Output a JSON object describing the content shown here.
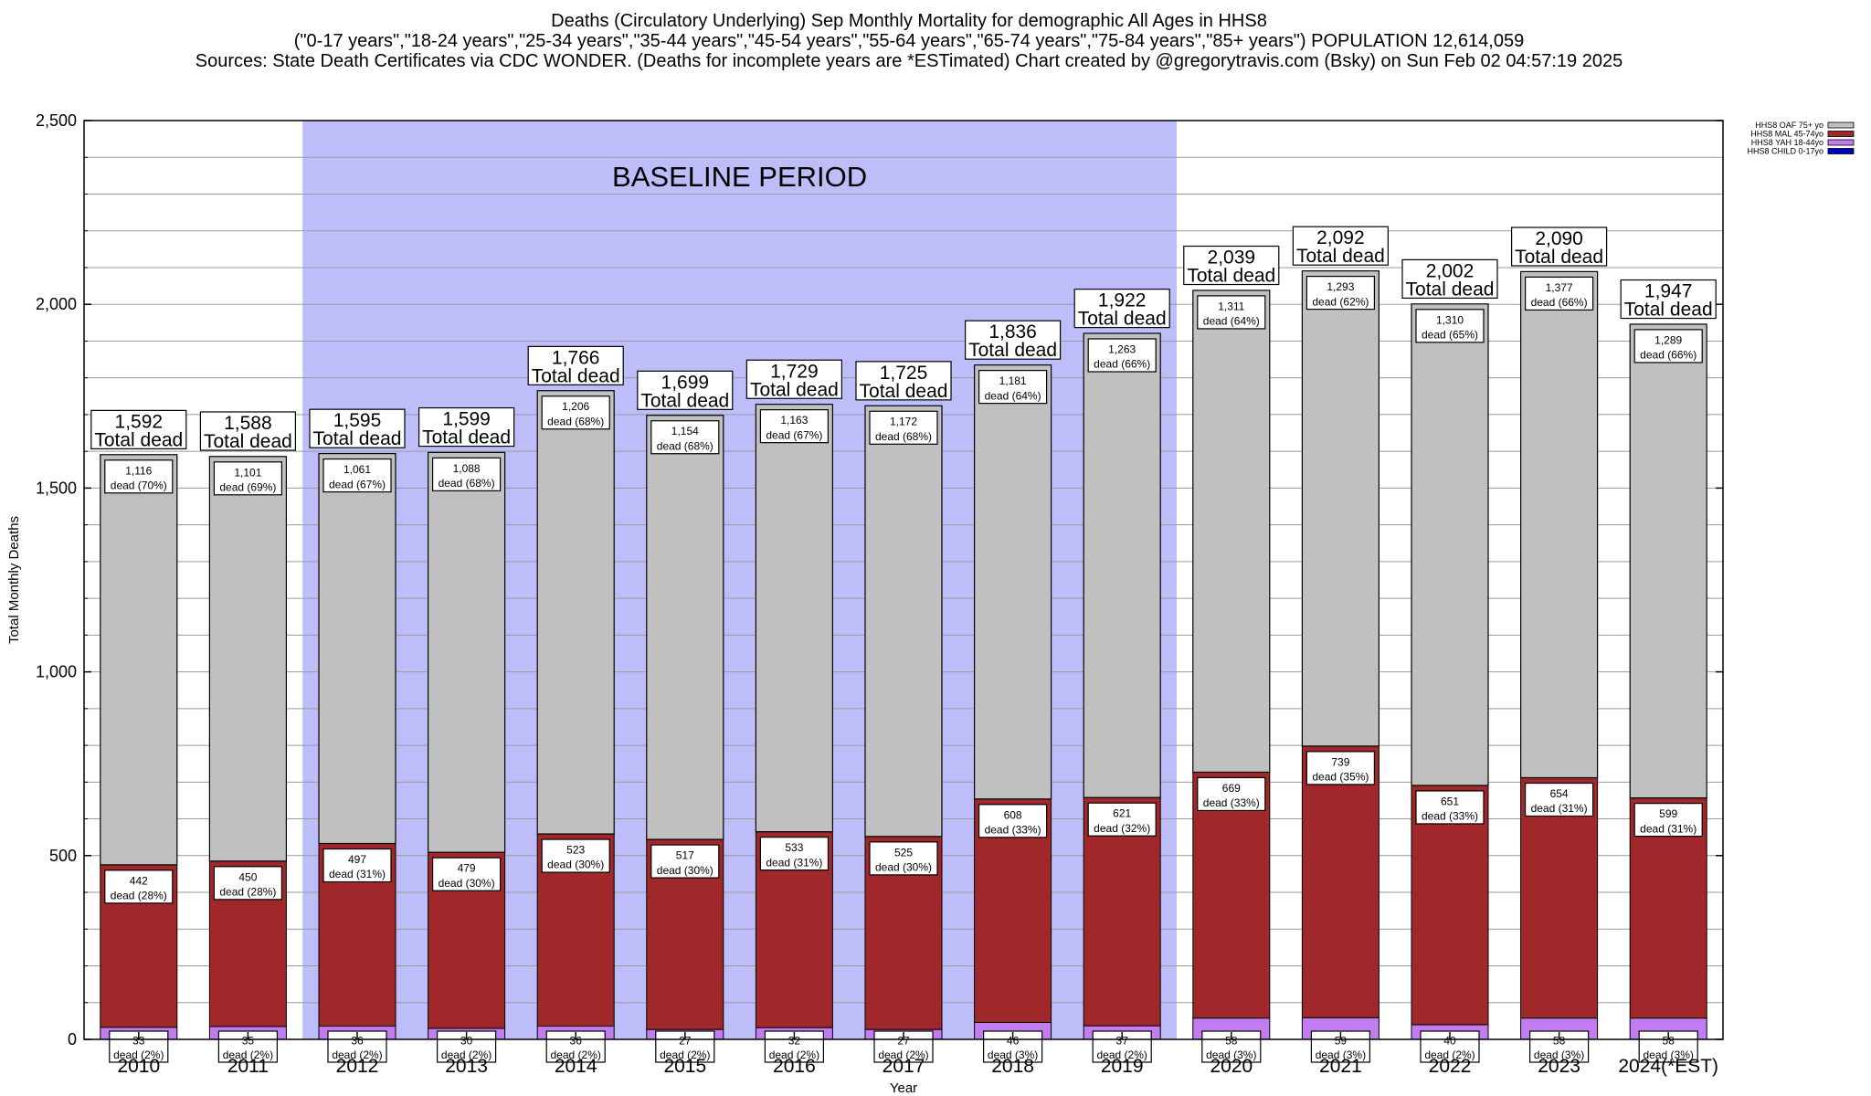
{
  "header": {
    "title_line1": "Deaths (Circulatory Underlying) Sep Monthly Mortality for demographic All Ages in HHS8",
    "title_line2": "(\"0-17 years\",\"18-24 years\",\"25-34 years\",\"35-44 years\",\"45-54 years\",\"55-64 years\",\"65-74 years\",\"75-84 years\",\"85+ years\") POPULATION 12,614,059",
    "title_line3": "Sources: State Death Certificates via CDC WONDER. (Deaths for incomplete years are *ESTimated)                Chart created by @gregorytravis.com (Bsky) on Sun Feb 02 04:57:19 2025"
  },
  "colors": {
    "oaf": "#c0c0c0",
    "mal": "#a0282a",
    "yah": "#c27cf0",
    "child": "#0000c8",
    "baseline": "#bdbdfa"
  },
  "chart_data": {
    "type": "bar",
    "stacked": true,
    "xlabel": "Year",
    "ylabel": "Total Monthly Deaths",
    "ylim": [
      0,
      2500
    ],
    "yticks": [
      0,
      500,
      1000,
      1500,
      2000,
      2500
    ],
    "ytick_labels": [
      "0",
      "500",
      "1,000",
      "1,500",
      "2,000",
      "2,500"
    ],
    "grid": true,
    "legend_position": "top-right",
    "baseline": {
      "label": "BASELINE PERIOD",
      "start": "2012",
      "end": "2019"
    },
    "total_suffix": "Total dead",
    "dead_word": "dead",
    "categories": [
      "2010",
      "2011",
      "2012",
      "2013",
      "2014",
      "2015",
      "2016",
      "2017",
      "2018",
      "2019",
      "2020",
      "2021",
      "2022",
      "2023",
      "2024(*EST)"
    ],
    "series": [
      {
        "name": "HHS8 CHILD 0-17yo",
        "key": "child",
        "values": [
          0,
          0,
          0,
          0,
          0,
          0,
          0,
          0,
          0,
          0,
          0,
          0,
          0,
          0,
          0
        ]
      },
      {
        "name": "HHS8 YAH 18-44yo",
        "key": "yah",
        "values": [
          33,
          35,
          36,
          30,
          36,
          27,
          32,
          27,
          46,
          37,
          58,
          59,
          40,
          58,
          58
        ],
        "labels": [
          "33",
          "35",
          "36",
          "30",
          "36",
          "27",
          "32",
          "27",
          "46",
          "37",
          "58",
          "59",
          "40",
          "58",
          "58"
        ],
        "pcts": [
          "(2%)",
          "(2%)",
          "(2%)",
          "(2%)",
          "(2%)",
          "(2%)",
          "(2%)",
          "(2%)",
          "(3%)",
          "(2%)",
          "(3%)",
          "(3%)",
          "(2%)",
          "(3%)",
          "(3%)"
        ]
      },
      {
        "name": "HHS8 MAL 45-74yo",
        "key": "mal",
        "values": [
          442,
          450,
          497,
          479,
          523,
          517,
          533,
          525,
          608,
          621,
          669,
          739,
          651,
          654,
          599
        ],
        "labels": [
          "442",
          "450",
          "497",
          "479",
          "523",
          "517",
          "533",
          "525",
          "608",
          "621",
          "669",
          "739",
          "651",
          "654",
          "599"
        ],
        "pcts": [
          "(28%)",
          "(28%)",
          "(31%)",
          "(30%)",
          "(30%)",
          "(30%)",
          "(31%)",
          "(30%)",
          "(33%)",
          "(32%)",
          "(33%)",
          "(35%)",
          "(33%)",
          "(31%)",
          "(31%)"
        ]
      },
      {
        "name": "HHS8 OAF 75+ yo",
        "key": "oaf",
        "values": [
          1116,
          1101,
          1061,
          1088,
          1206,
          1154,
          1163,
          1172,
          1181,
          1263,
          1311,
          1293,
          1310,
          1377,
          1289
        ],
        "labels": [
          "1,116",
          "1,101",
          "1,061",
          "1,088",
          "1,206",
          "1,154",
          "1,163",
          "1,172",
          "1,181",
          "1,263",
          "1,311",
          "1,293",
          "1,310",
          "1,377",
          "1,289"
        ],
        "pcts": [
          "(70%)",
          "(69%)",
          "(67%)",
          "(68%)",
          "(68%)",
          "(68%)",
          "(67%)",
          "(68%)",
          "(64%)",
          "(66%)",
          "(64%)",
          "(62%)",
          "(65%)",
          "(66%)",
          "(66%)"
        ]
      }
    ],
    "totals": [
      1592,
      1588,
      1595,
      1599,
      1766,
      1699,
      1729,
      1725,
      1836,
      1922,
      2039,
      2092,
      2002,
      2090,
      1947
    ],
    "total_labels": [
      "1,592",
      "1,588",
      "1,595",
      "1,599",
      "1,766",
      "1,699",
      "1,729",
      "1,725",
      "1,836",
      "1,922",
      "2,039",
      "2,092",
      "2,002",
      "2,090",
      "1,947"
    ],
    "legend_order": [
      "HHS8 OAF 75+ yo",
      "HHS8 MAL 45-74yo",
      "HHS8 YAH 18-44yo",
      "HHS8 CHILD 0-17yo"
    ]
  }
}
